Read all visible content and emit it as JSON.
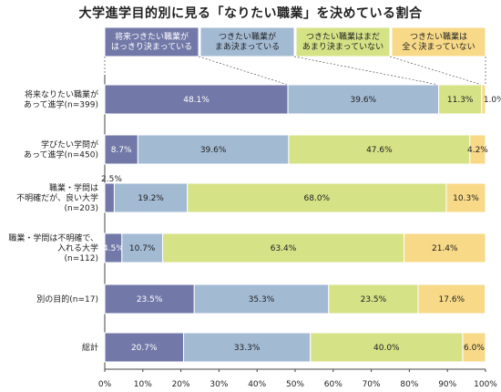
{
  "chart_data": {
    "type": "bar",
    "stacked": true,
    "orientation": "horizontal",
    "title": "大学進学目的別に見る「なりたい職業」を決めている割合",
    "categories": [
      [
        "将来なりたい職業が",
        "あって進学(n=399)"
      ],
      [
        "学びたい学問が",
        "あって進学(n=450)"
      ],
      [
        "職業・学問は",
        "不明確だが、良い大学",
        "(n=203)"
      ],
      [
        "職業・学問は不明確で、",
        "入れる大学",
        "(n=112)"
      ],
      [
        "別の目的(n=17)"
      ],
      [
        "総計"
      ]
    ],
    "series": [
      {
        "name": [
          "将来つきたい職業が",
          "はっきり決まっている"
        ],
        "color": "#7279a8",
        "text_color": "#ffffff",
        "values": [
          48.1,
          8.7,
          2.5,
          4.5,
          23.5,
          20.7
        ]
      },
      {
        "name": [
          "つきたい職業が",
          "まあ決まっている"
        ],
        "color": "#a3bad3",
        "text_color": "#222222",
        "values": [
          39.6,
          39.6,
          19.2,
          10.7,
          35.3,
          33.3
        ]
      },
      {
        "name": [
          "つきたい職業はまだ",
          "あまり決まっていない"
        ],
        "color": "#d6e286",
        "text_color": "#222222",
        "values": [
          11.3,
          47.6,
          68.0,
          63.4,
          23.5,
          40.0
        ]
      },
      {
        "name": [
          "つきたい職業は",
          "全く決まっていない"
        ],
        "color": "#f7d987",
        "text_color": "#222222",
        "values": [
          1.0,
          4.2,
          10.3,
          21.4,
          17.6,
          6.0
        ]
      }
    ],
    "x_ticks": [
      "0%",
      "10%",
      "20%",
      "30%",
      "40%",
      "50%",
      "60%",
      "70%",
      "80%",
      "90%",
      "100%"
    ],
    "xlim": [
      0,
      100
    ],
    "grid": false,
    "legend_position": "top"
  }
}
